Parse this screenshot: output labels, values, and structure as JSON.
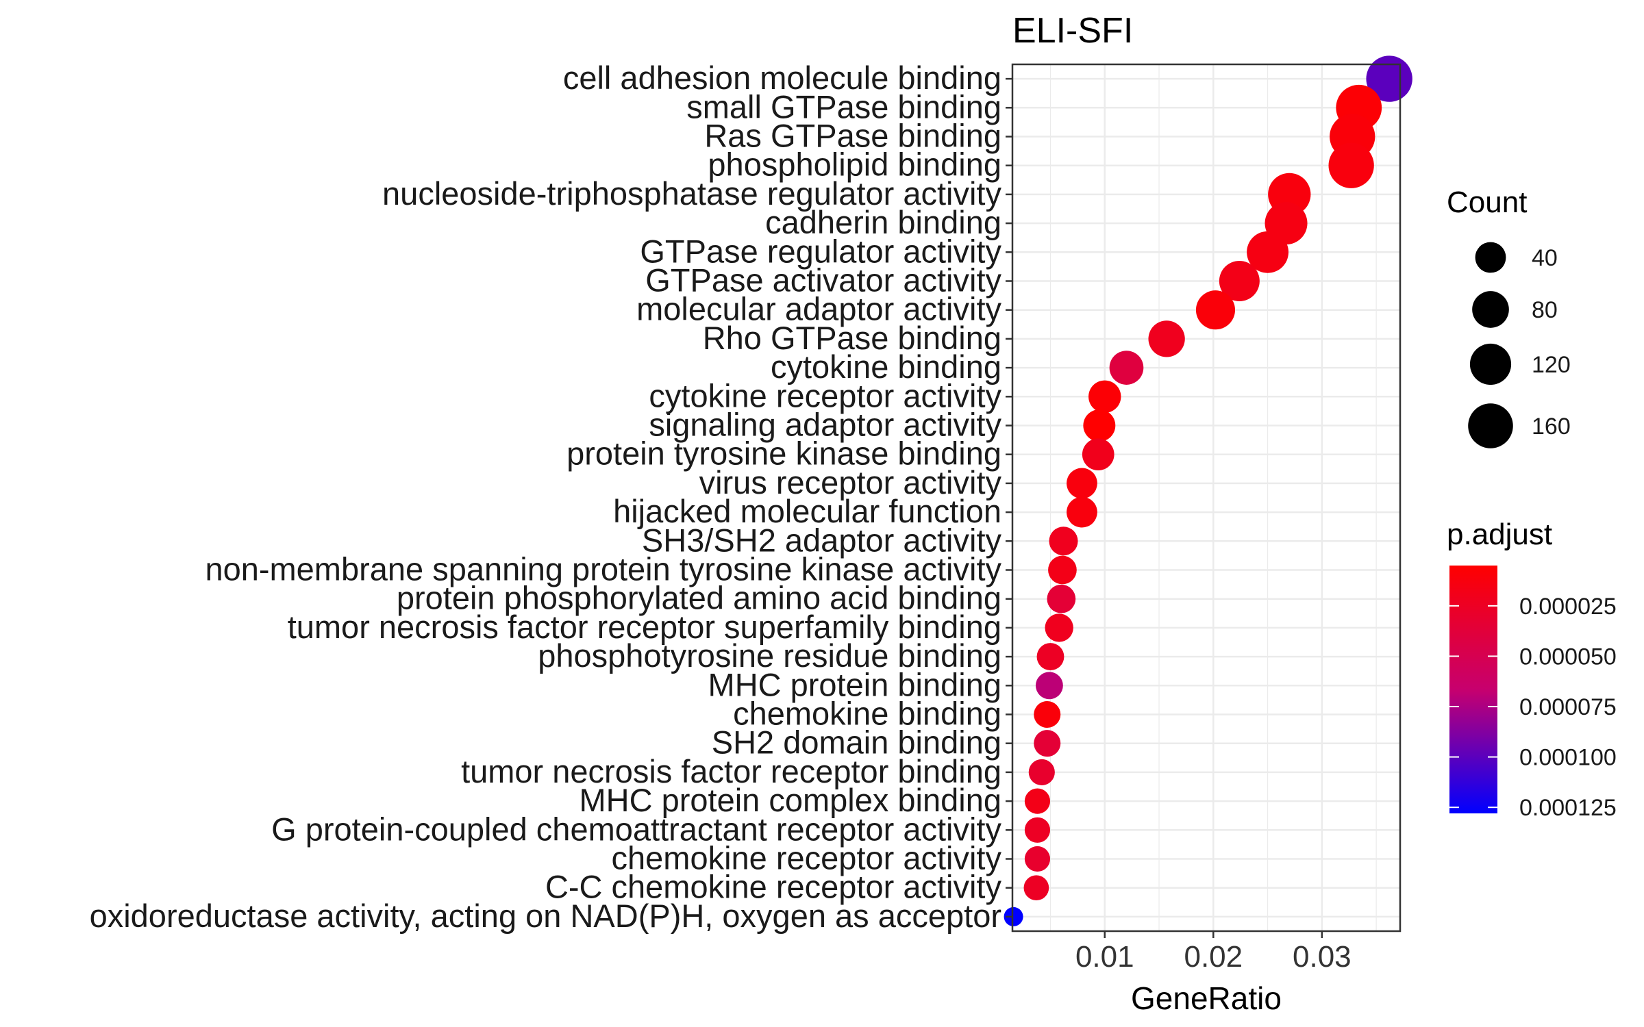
{
  "chart_data": {
    "type": "scatter",
    "title": "ELI-SFI",
    "xlabel": "GeneRatio",
    "ylabel": "",
    "xlim": [
      0.0015,
      0.0372
    ],
    "x_ticks": [
      0.01,
      0.02,
      0.03
    ],
    "x_tick_labels": [
      "0.01",
      "0.02",
      "0.03"
    ],
    "grid": true,
    "legend_position": "right",
    "colors": {
      "low": "#ff0000",
      "high": "#0000ff"
    },
    "count_range": [
      10,
      180
    ],
    "padj_range": [
      5e-06,
      0.000128
    ],
    "categories": [
      "cell adhesion molecule binding",
      "small GTPase binding",
      "Ras GTPase binding",
      "phospholipid binding",
      "nucleoside-triphosphatase regulator activity",
      "cadherin binding",
      "GTPase regulator activity",
      "GTPase activator activity",
      "molecular adaptor activity",
      "Rho GTPase binding",
      "cytokine binding",
      "cytokine receptor activity",
      "signaling adaptor activity",
      "protein tyrosine kinase binding",
      "virus receptor activity",
      "hijacked molecular function",
      "SH3/SH2 adaptor activity",
      "non-membrane spanning protein tyrosine kinase activity",
      "protein phosphorylated amino acid binding",
      "tumor necrosis factor receptor superfamily binding",
      "phosphotyrosine residue binding",
      "MHC protein binding",
      "chemokine binding",
      "SH2 domain binding",
      "tumor necrosis factor receptor binding",
      "MHC protein complex binding",
      "G protein-coupled chemoattractant receptor activity",
      "chemokine receptor activity",
      "C-C chemokine receptor activity",
      "oxidoreductase activity, acting on NAD(P)H, oxygen as acceptor"
    ],
    "points": [
      {
        "x": 0.0362,
        "count": 175,
        "padj": 0.0001
      },
      {
        "x": 0.0334,
        "count": 170,
        "padj": 8e-06
      },
      {
        "x": 0.0328,
        "count": 166,
        "padj": 1e-05
      },
      {
        "x": 0.0327,
        "count": 166,
        "padj": 1.2e-05
      },
      {
        "x": 0.027,
        "count": 135,
        "padj": 1.2e-05
      },
      {
        "x": 0.0267,
        "count": 133,
        "padj": 1.5e-05
      },
      {
        "x": 0.025,
        "count": 125,
        "padj": 1.5e-05
      },
      {
        "x": 0.0224,
        "count": 112,
        "padj": 1.8e-05
      },
      {
        "x": 0.0202,
        "count": 100,
        "padj": 1e-05
      },
      {
        "x": 0.0157,
        "count": 78,
        "padj": 2.2e-05
      },
      {
        "x": 0.012,
        "count": 60,
        "padj": 4e-05
      },
      {
        "x": 0.01,
        "count": 50,
        "padj": 8e-06
      },
      {
        "x": 0.0095,
        "count": 48,
        "padj": 5e-06
      },
      {
        "x": 0.0094,
        "count": 47,
        "padj": 2e-05
      },
      {
        "x": 0.0079,
        "count": 40,
        "padj": 1.2e-05
      },
      {
        "x": 0.0079,
        "count": 40,
        "padj": 1.2e-05
      },
      {
        "x": 0.0062,
        "count": 31,
        "padj": 2.2e-05
      },
      {
        "x": 0.0061,
        "count": 30,
        "padj": 1.8e-05
      },
      {
        "x": 0.006,
        "count": 30,
        "padj": 3.5e-05
      },
      {
        "x": 0.0058,
        "count": 29,
        "padj": 2.2e-05
      },
      {
        "x": 0.005,
        "count": 25,
        "padj": 2.5e-05
      },
      {
        "x": 0.0049,
        "count": 25,
        "padj": 7e-05
      },
      {
        "x": 0.0047,
        "count": 23,
        "padj": 1e-05
      },
      {
        "x": 0.0047,
        "count": 23,
        "padj": 3.5e-05
      },
      {
        "x": 0.0042,
        "count": 21,
        "padj": 3e-05
      },
      {
        "x": 0.0038,
        "count": 19,
        "padj": 1.8e-05
      },
      {
        "x": 0.0038,
        "count": 19,
        "padj": 2.5e-05
      },
      {
        "x": 0.0038,
        "count": 19,
        "padj": 3e-05
      },
      {
        "x": 0.0037,
        "count": 18,
        "padj": 2.5e-05
      },
      {
        "x": 0.0016,
        "count": 10,
        "padj": 0.000128
      }
    ],
    "legend_count": {
      "title": "Count",
      "entries": [
        {
          "label": "40",
          "value": 40
        },
        {
          "label": "80",
          "value": 80
        },
        {
          "label": "120",
          "value": 120
        },
        {
          "label": "160",
          "value": 160
        }
      ]
    },
    "legend_color": {
      "title": "p.adjust",
      "ticks": [
        {
          "label": "0.000025",
          "value": 2.5e-05
        },
        {
          "label": "0.000050",
          "value": 5e-05
        },
        {
          "label": "0.000075",
          "value": 7.5e-05
        },
        {
          "label": "0.000100",
          "value": 0.0001
        },
        {
          "label": "0.000125",
          "value": 0.000125
        }
      ]
    }
  }
}
